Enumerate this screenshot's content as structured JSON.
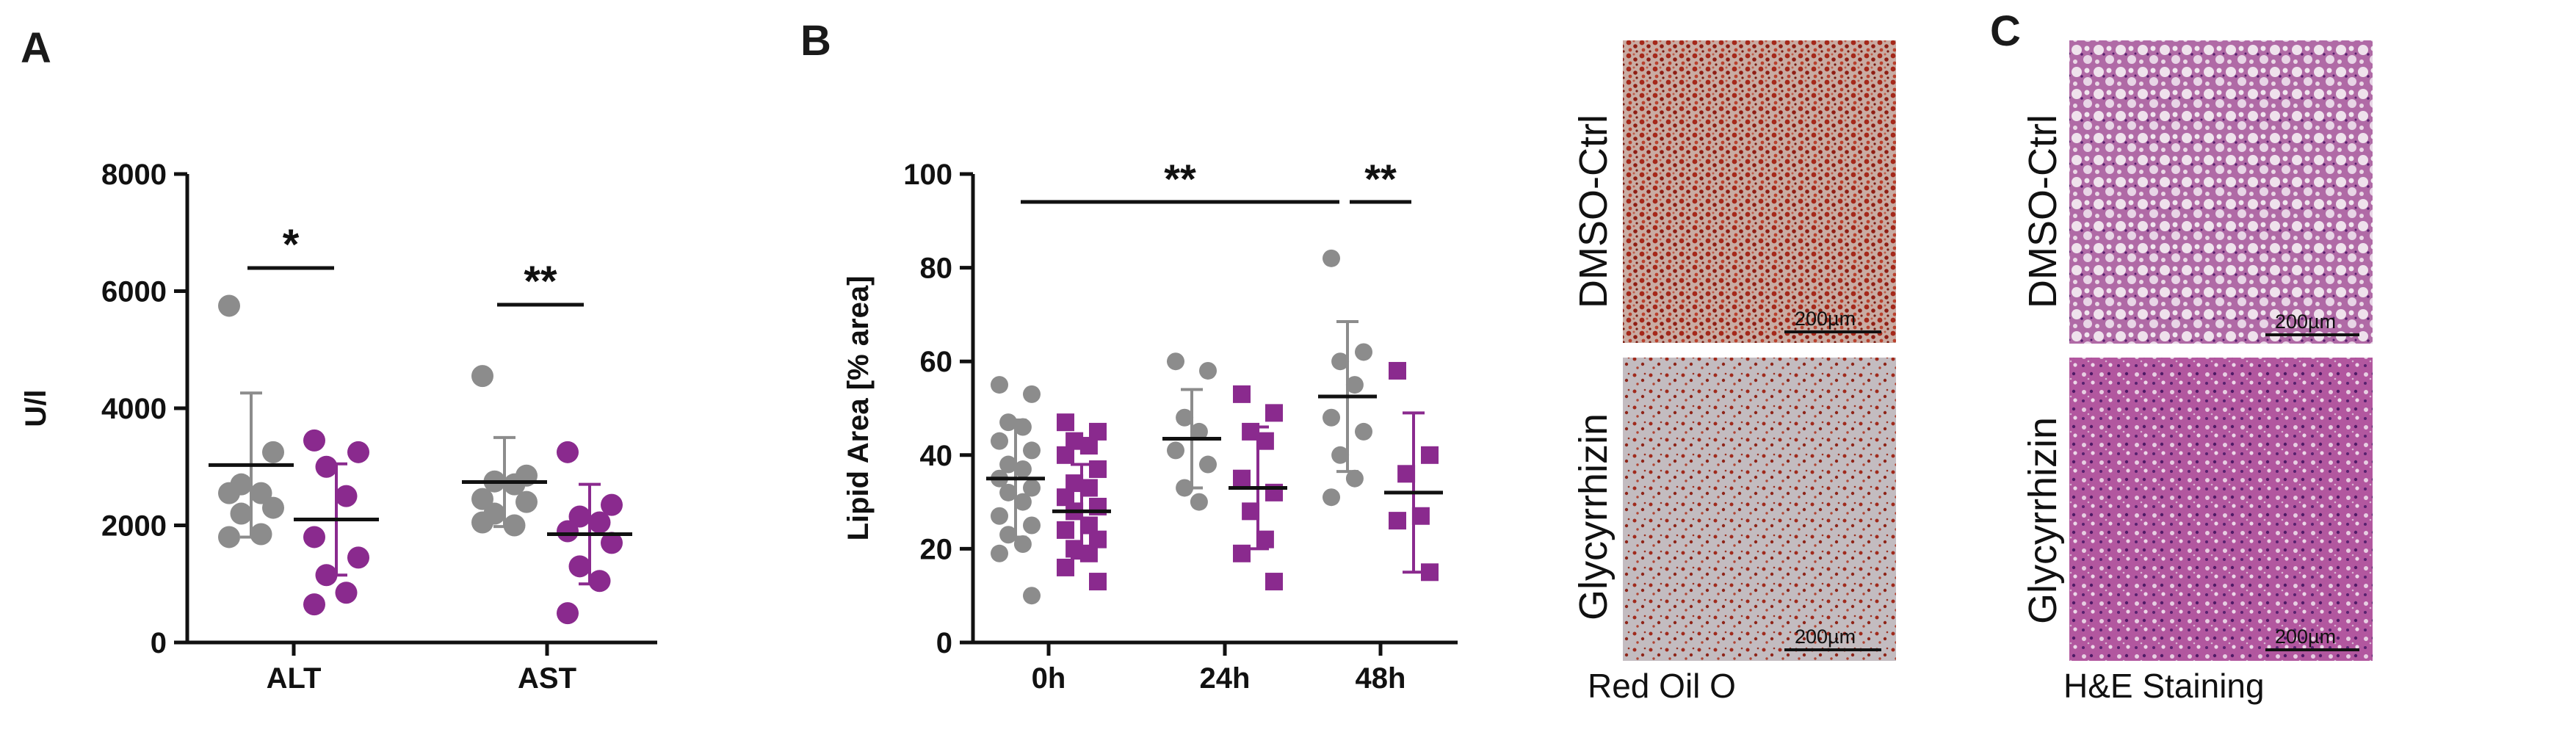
{
  "panels": {
    "a": "A",
    "b": "B",
    "c": "C"
  },
  "colors": {
    "control": "#8c8c8c",
    "treated": "#8a2a8e",
    "axis": "#111111"
  },
  "chart_data": [
    {
      "type": "scatter",
      "title": "",
      "xlabel": "",
      "ylabel": "U/l",
      "ylim": [
        0,
        8000
      ],
      "yticks": [
        "0",
        "2000",
        "4000",
        "6000",
        "8000"
      ],
      "categories": [
        "ALT",
        "AST"
      ],
      "series": [
        {
          "name": "DMSO-Ctrl",
          "marker": "circle",
          "values": [
            [
              5750,
              3250,
              2700,
              2550,
              2550,
              2300,
              2200,
              1850,
              1800
            ],
            [
              4550,
              2850,
              2750,
              2700,
              2450,
              2400,
              2200,
              2000,
              2050
            ]
          ],
          "mean": [
            3030,
            2740
          ],
          "sd": [
            1230,
            760
          ]
        },
        {
          "name": "Glycyrrhizin",
          "marker": "circle",
          "values": [
            [
              3450,
              3250,
              3000,
              2500,
              1800,
              1450,
              1150,
              850,
              650
            ],
            [
              3250,
              2350,
              2150,
              2050,
              1900,
              1700,
              1300,
              1050,
              500
            ]
          ],
          "mean": [
            2100,
            1850
          ],
          "sd": [
            950,
            850
          ]
        }
      ],
      "annotations": [
        {
          "text": "*",
          "pair": "ALT"
        },
        {
          "text": "**",
          "pair": "AST"
        }
      ]
    },
    {
      "type": "scatter",
      "title": "",
      "xlabel": "",
      "ylabel": "Lipid Area [% area]",
      "ylim": [
        0,
        100
      ],
      "yticks": [
        "0",
        "20",
        "40",
        "60",
        "80",
        "100"
      ],
      "categories": [
        "0h",
        "24h",
        "48h"
      ],
      "series": [
        {
          "name": "DMSO-Ctrl",
          "marker": "circle",
          "values": [
            [
              55,
              53,
              47,
              46,
              43,
              41,
              38,
              37,
              35,
              33,
              32,
              30,
              27,
              25,
              23,
              21,
              19,
              10
            ],
            [
              60,
              58,
              48,
              45,
              41,
              38,
              33,
              30
            ],
            [
              82,
              62,
              60,
              55,
              48,
              45,
              40,
              35,
              31
            ]
          ],
          "mean": [
            35,
            43.5,
            52.5
          ],
          "sd": [
            12.5,
            10.5,
            16
          ]
        },
        {
          "name": "Glycyrrhizin",
          "marker": "square",
          "values": [
            [
              47,
              45,
              43,
              42,
              40,
              37,
              34,
              33,
              31,
              29,
              28,
              25,
              24,
              22,
              20,
              19,
              16,
              13
            ],
            [
              53,
              49,
              45,
              43,
              35,
              32,
              28,
              22,
              19,
              13
            ],
            [
              58,
              40,
              36,
              27,
              26,
              15
            ]
          ],
          "mean": [
            28,
            33,
            32
          ],
          "sd": [
            10,
            13,
            17
          ]
        }
      ],
      "annotations": [
        {
          "text": "**",
          "pair": "0h-48h"
        },
        {
          "text": "**",
          "pair": "48h"
        }
      ]
    }
  ],
  "images": {
    "row_labels": [
      "DMSO-Ctrl",
      "Glycyrrhizin"
    ],
    "scale_bar": "200µm",
    "oil_red_label": "Red Oil O",
    "he_label": "H&E Staining"
  }
}
